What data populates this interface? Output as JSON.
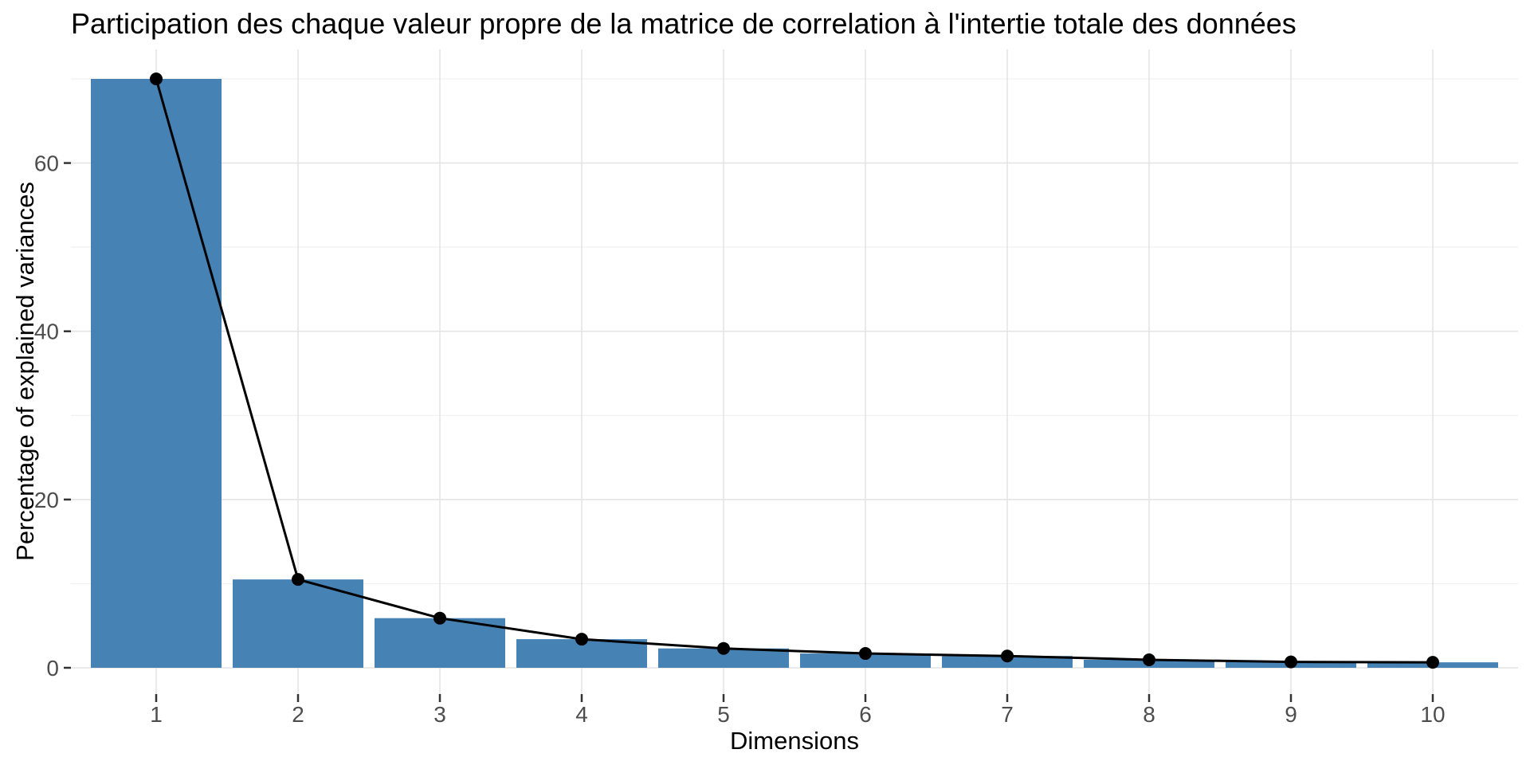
{
  "chart_data": {
    "type": "bar+line",
    "title": "Participation des chaque valeur propre de la matrice de correlation à l'intertie totale des données",
    "xlabel": "Dimensions",
    "ylabel": "Percentage of explained variances",
    "categories": [
      "1",
      "2",
      "3",
      "4",
      "5",
      "6",
      "7",
      "8",
      "9",
      "10"
    ],
    "values": [
      70.0,
      10.5,
      5.9,
      3.4,
      2.3,
      1.7,
      1.4,
      0.95,
      0.7,
      0.65
    ],
    "series": [
      {
        "name": "explained-variance-bars",
        "mark": "bar"
      },
      {
        "name": "scree-line-with-points",
        "mark": "line+point"
      }
    ],
    "yticks": [
      0,
      20,
      40,
      60
    ],
    "yticks_minor": [
      10,
      30,
      50,
      70
    ],
    "ylim": [
      -3.5,
      73.5
    ],
    "grid": "horizontal major+minor, vertical major at each dimension, light gray on white",
    "legend": "none",
    "colors": {
      "bar": "#4682B4",
      "line": "#000000",
      "point": "#000000",
      "grid_major": "#E4E4E4",
      "grid_minor": "#F0F0F0",
      "tick_mark": "#333333",
      "tick_label": "#4D4D4D",
      "title": "#000000",
      "background": "#FFFFFF"
    }
  }
}
